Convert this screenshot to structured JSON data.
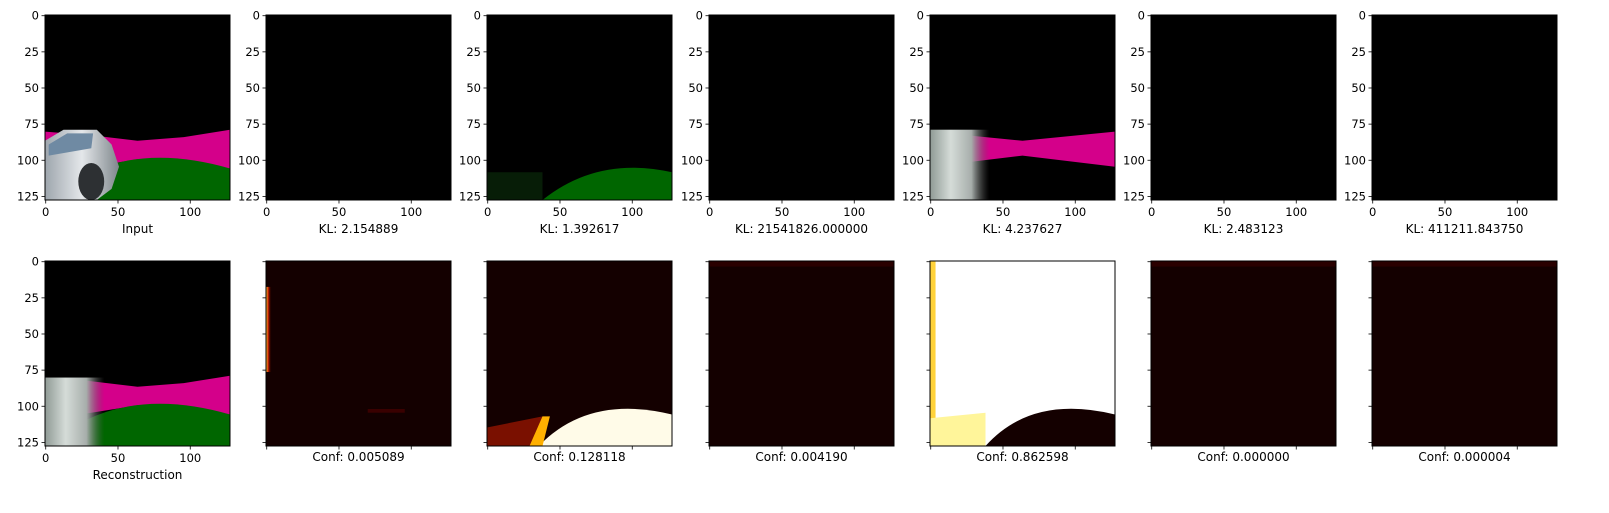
{
  "figure": {
    "rows": [
      {
        "panels": [
          {
            "name": "panel-input",
            "image": "input",
            "label": "Input",
            "show_y_ticks": true,
            "show_x_tick_labels": true
          },
          {
            "name": "panel-sample-1",
            "image": "black",
            "label": "KL: 2.154889",
            "show_y_ticks": true,
            "show_x_tick_labels": true
          },
          {
            "name": "panel-sample-2",
            "image": "green",
            "label": "KL: 1.392617",
            "show_y_ticks": true,
            "show_x_tick_labels": true
          },
          {
            "name": "panel-sample-3",
            "image": "black",
            "label": "KL: 21541826.000000",
            "show_y_ticks": true,
            "show_x_tick_labels": true
          },
          {
            "name": "panel-sample-4",
            "image": "car-road",
            "label": "KL: 4.237627",
            "show_y_ticks": true,
            "show_x_tick_labels": true
          },
          {
            "name": "panel-sample-5",
            "image": "black",
            "label": "KL: 2.483123",
            "show_y_ticks": true,
            "show_x_tick_labels": true
          },
          {
            "name": "panel-sample-6",
            "image": "black",
            "label": "KL: 411211.843750",
            "show_y_ticks": true,
            "show_x_tick_labels": true
          }
        ]
      },
      {
        "panels": [
          {
            "name": "panel-reconstruction",
            "image": "reconstruction",
            "label": "Reconstruction",
            "show_y_ticks": true,
            "show_x_tick_labels": true
          },
          {
            "name": "panel-conf-1",
            "image": "conf-left-edge",
            "label": "Conf: 0.005089",
            "show_y_ticks": false,
            "show_x_tick_labels": false
          },
          {
            "name": "panel-conf-2",
            "image": "conf-bottom",
            "label": "Conf: 0.128118",
            "show_y_ticks": false,
            "show_x_tick_labels": false
          },
          {
            "name": "panel-conf-3",
            "image": "conf-dark",
            "label": "Conf: 0.004190",
            "show_y_ticks": false,
            "show_x_tick_labels": false
          },
          {
            "name": "panel-conf-4",
            "image": "conf-bright",
            "label": "Conf: 0.862598",
            "show_y_ticks": false,
            "show_x_tick_labels": false
          },
          {
            "name": "panel-conf-5",
            "image": "conf-dark",
            "label": "Conf: 0.000000",
            "show_y_ticks": false,
            "show_x_tick_labels": false
          },
          {
            "name": "panel-conf-6",
            "image": "conf-dark",
            "label": "Conf: 0.000004",
            "show_y_ticks": false,
            "show_x_tick_labels": false
          }
        ]
      }
    ],
    "x_ticks": [
      "0",
      "50",
      "100"
    ],
    "x_tick_values": [
      0,
      50,
      100
    ],
    "y_ticks": [
      "0",
      "25",
      "50",
      "75",
      "100",
      "125"
    ],
    "y_tick_values": [
      0,
      25,
      50,
      75,
      100,
      125
    ],
    "image_extent": [
      -0.5,
      127.5
    ],
    "colors": {
      "background": "#000000",
      "road": "#d4008a",
      "grass": "#006600",
      "car": "#c4c9cf",
      "heat_dark": "#140000",
      "heat_bright": "#ffffff"
    }
  }
}
